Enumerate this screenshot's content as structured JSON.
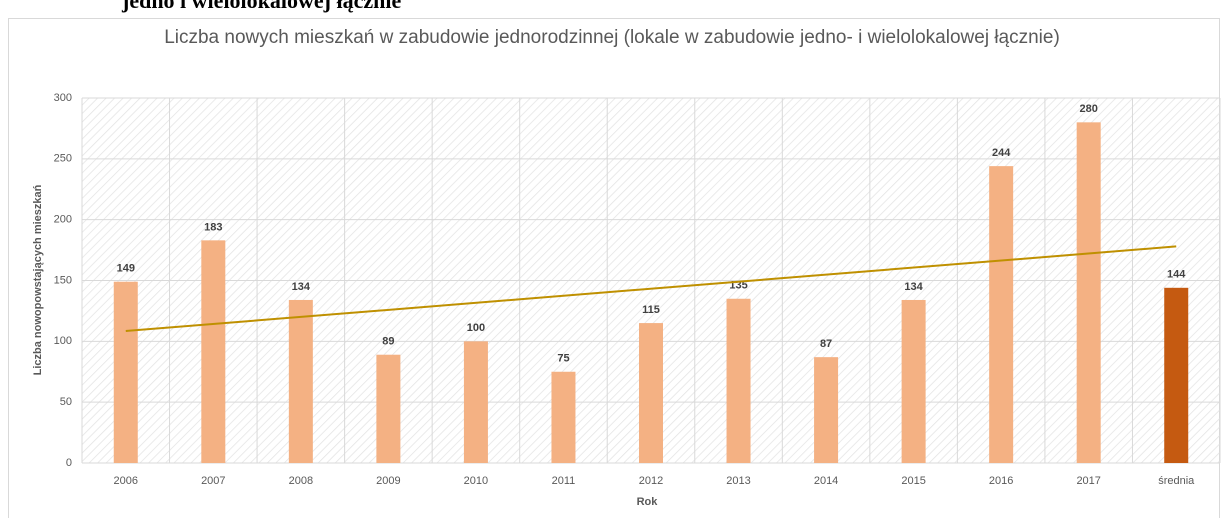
{
  "page_heading": "jedno i wielolokalowej łącznie",
  "chart_data": {
    "type": "bar",
    "title": "Liczba nowych mieszkań w zabudowie jednorodzinnej (lokale w zabudowie jedno- i wielolokalowej łącznie)",
    "x_label": "Rok",
    "y_label": "Liczba nowopowstających mieszkań",
    "categories": [
      "2006",
      "2007",
      "2008",
      "2009",
      "2010",
      "2011",
      "2012",
      "2013",
      "2014",
      "2015",
      "2016",
      "2017",
      "średnia"
    ],
    "values": [
      149,
      183,
      134,
      89,
      100,
      75,
      115,
      135,
      87,
      134,
      244,
      280,
      144
    ],
    "colors": [
      "#f4b183",
      "#f4b183",
      "#f4b183",
      "#f4b183",
      "#f4b183",
      "#f4b183",
      "#f4b183",
      "#f4b183",
      "#f4b183",
      "#f4b183",
      "#f4b183",
      "#f4b183",
      "#c55a11"
    ],
    "trendline": {
      "color": "#bf9000",
      "values": [
        108.5,
        178
      ]
    },
    "ylim": [
      0,
      300
    ],
    "yticks": [
      0,
      50,
      100,
      150,
      200,
      250,
      300
    ],
    "grid": true
  }
}
